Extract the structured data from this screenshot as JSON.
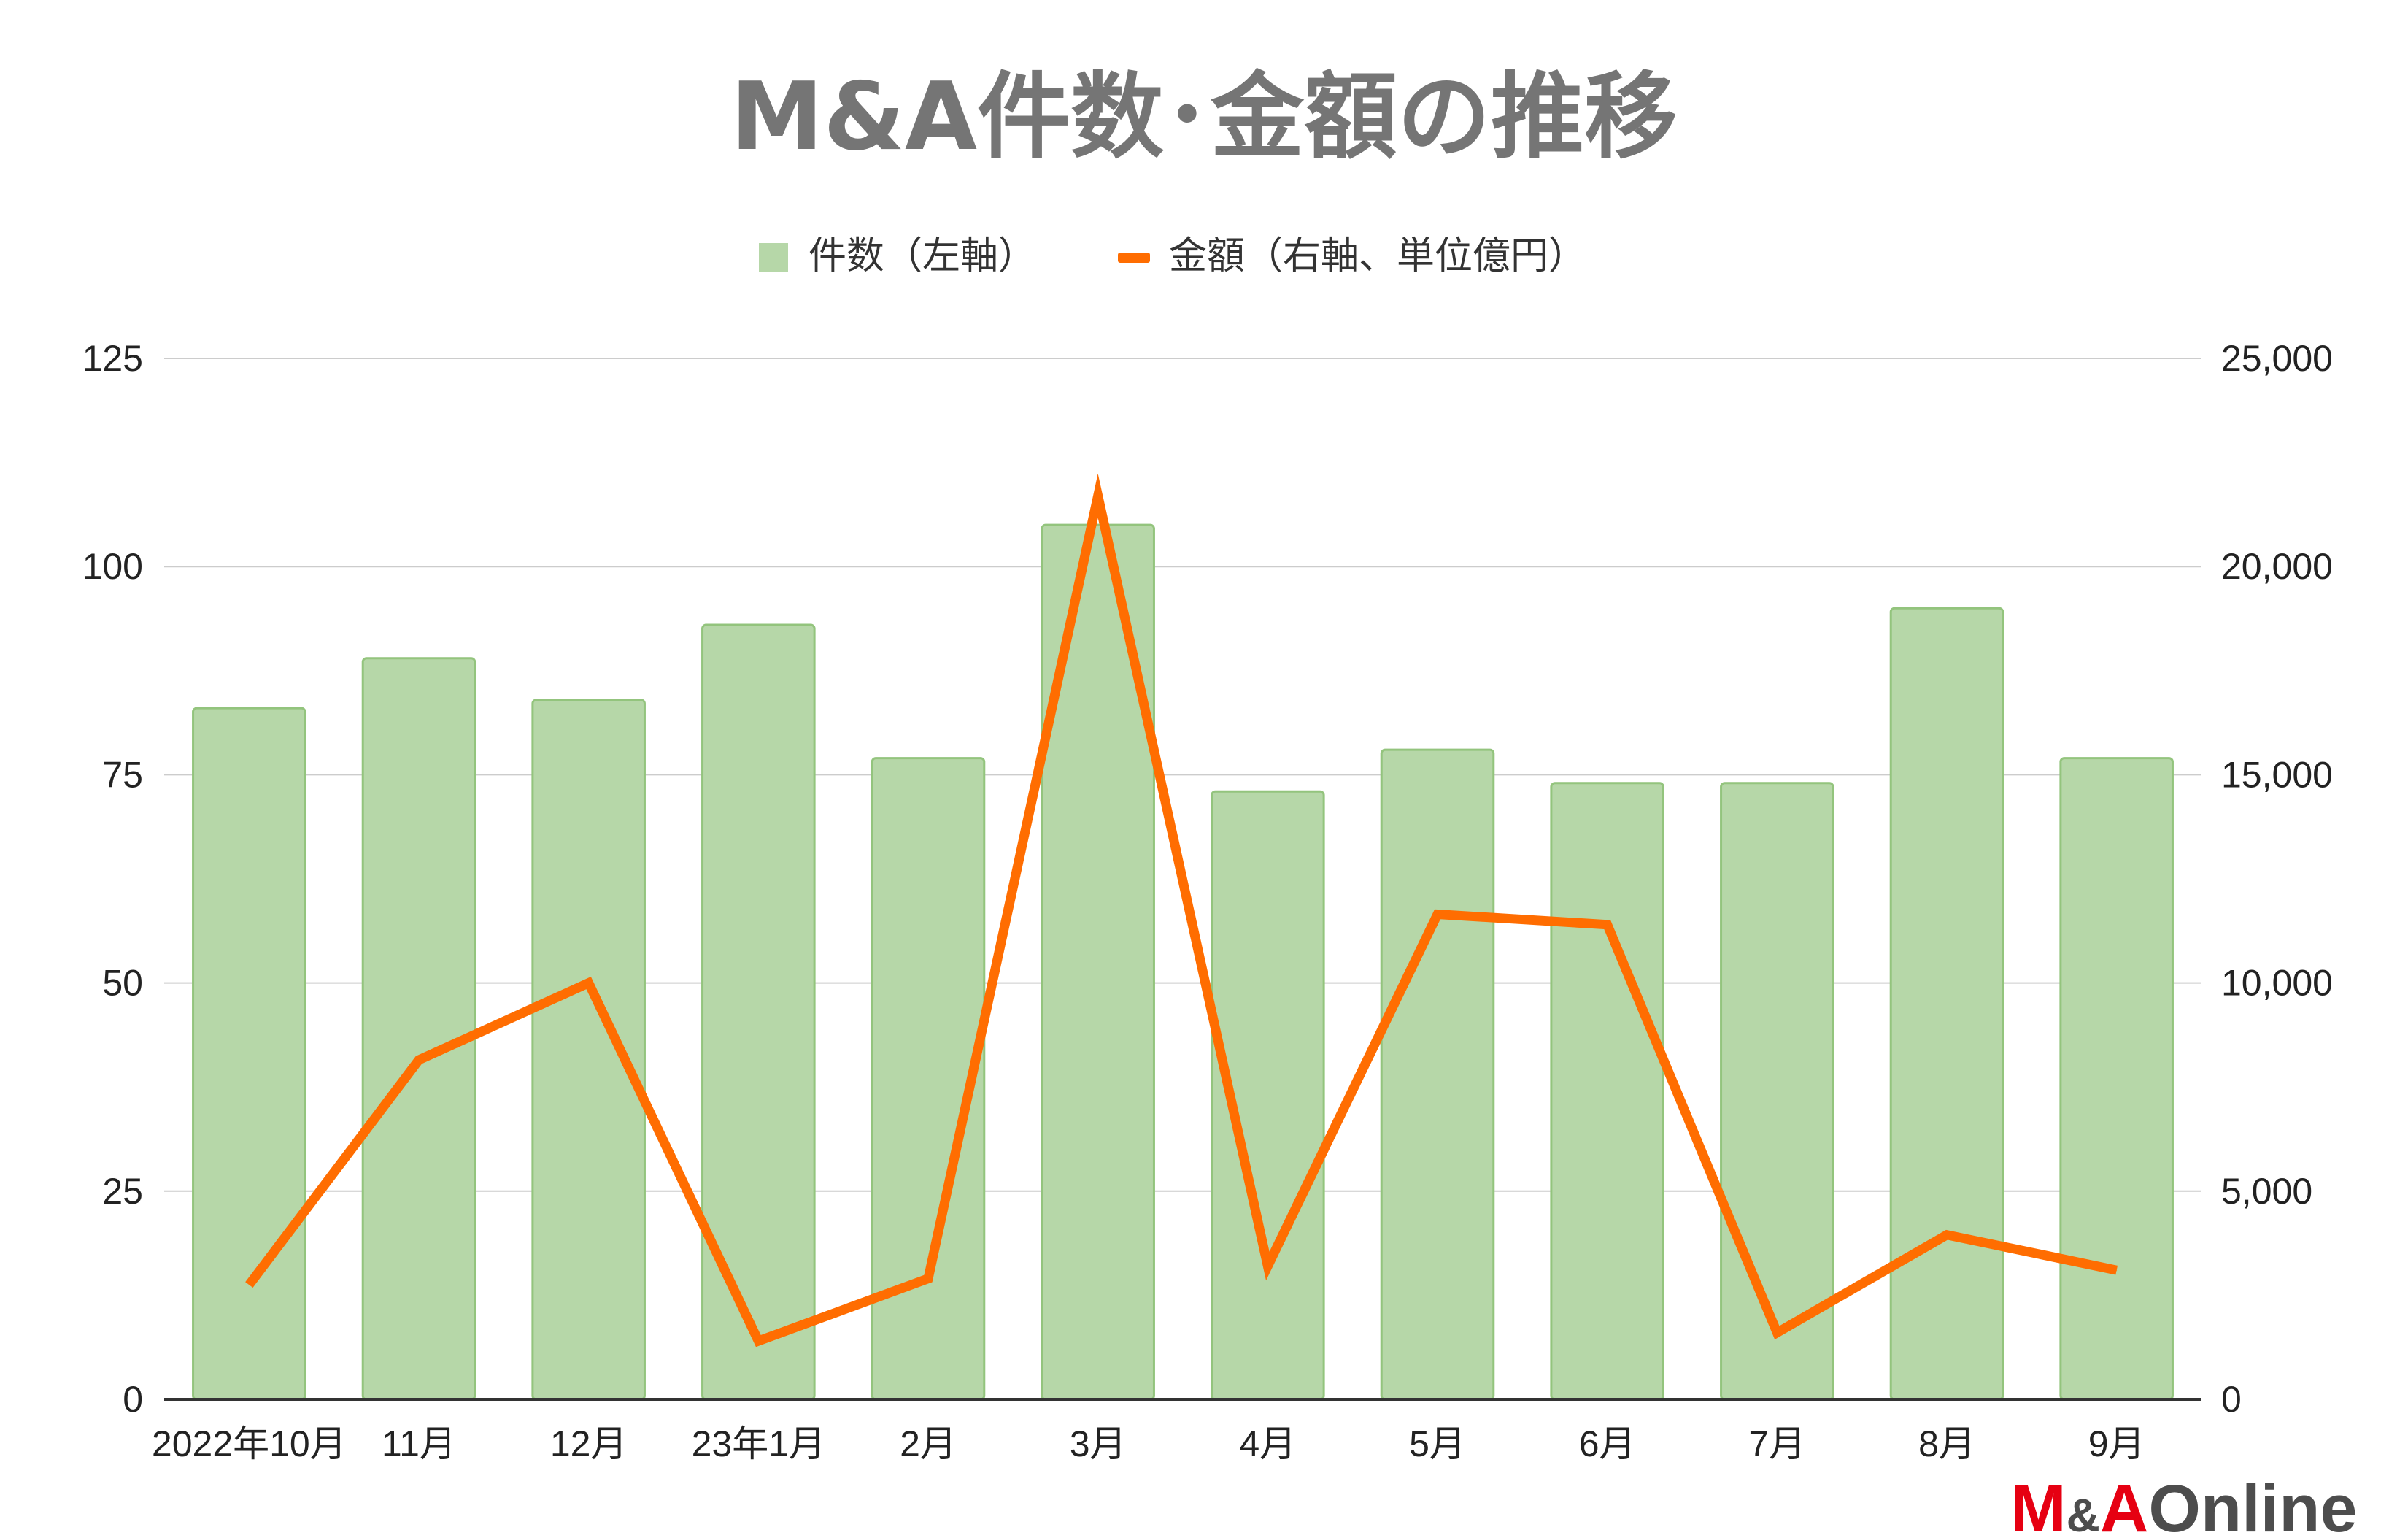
{
  "chart_data": {
    "type": "bar",
    "title": "M&A件数･金額の推移",
    "categories": [
      "2022年10月",
      "11月",
      "12月",
      "23年1月",
      "2月",
      "3月",
      "4月",
      "5月",
      "6月",
      "7月",
      "8月",
      "9月"
    ],
    "series": [
      {
        "name": "件数（左軸）",
        "type": "bar",
        "axis": "left",
        "color": "#b6d7a8",
        "values": [
          83,
          89,
          84,
          93,
          77,
          105,
          73,
          78,
          74,
          74,
          95,
          77
        ]
      },
      {
        "name": "金額（右軸、単位億円）",
        "type": "line",
        "axis": "right",
        "color": "#ff6d01",
        "values": [
          2750,
          8150,
          10000,
          1400,
          2900,
          21700,
          3200,
          11650,
          11400,
          1600,
          3950,
          3100
        ]
      }
    ],
    "y_left": {
      "min": 0,
      "max": 125,
      "ticks": [
        "0",
        "25",
        "50",
        "75",
        "100",
        "125"
      ]
    },
    "y_right": {
      "min": 0,
      "max": 25000,
      "ticks": [
        "0",
        "5,000",
        "10,000",
        "15,000",
        "20,000",
        "25,000"
      ]
    },
    "grid": true,
    "legend_position": "top-center"
  },
  "branding": {
    "logo_text_1": "M",
    "logo_text_2": "&",
    "logo_text_3": "A",
    "logo_text_4": "Online",
    "logo_color_red": "#e60012",
    "logo_color_gray": "#4d4d4d"
  }
}
